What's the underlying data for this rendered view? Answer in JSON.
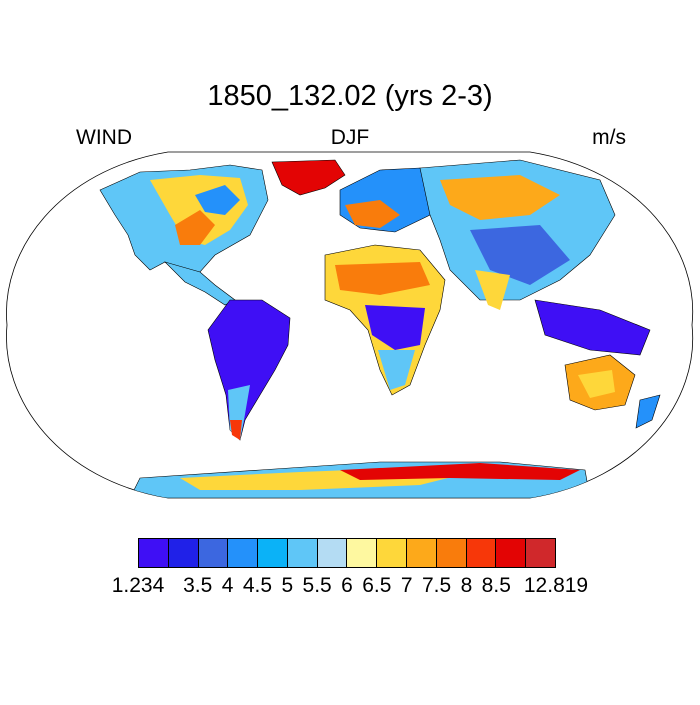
{
  "title": "1850_132.02 (yrs 2-3)",
  "left_label": "WIND",
  "center_label": "DJF",
  "right_label": "m/s",
  "colorbar": {
    "colors": [
      "#3f0ff5",
      "#2021e8",
      "#3c67e0",
      "#2491fa",
      "#0bb2f7",
      "#5fc6f7",
      "#b4dcf3",
      "#fef8a0",
      "#fed73a",
      "#fda91a",
      "#f97c0c",
      "#f73709",
      "#e30404",
      "#d0282b"
    ],
    "labels": [
      "1.234",
      "3.5",
      "4",
      "4.5",
      "5",
      "5.5",
      "6",
      "6.5",
      "7",
      "7.5",
      "8",
      "8.5",
      "12.819"
    ]
  }
}
